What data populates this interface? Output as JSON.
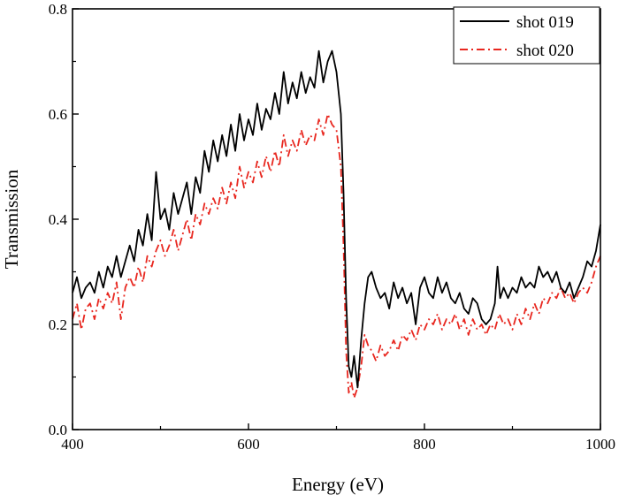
{
  "chart_data": {
    "type": "line",
    "title": "",
    "xlabel": "Energy (eV)",
    "ylabel": "Transmission",
    "xlim": [
      400,
      1000
    ],
    "ylim": [
      0.0,
      0.8
    ],
    "x_ticks": [
      400,
      600,
      800,
      1000
    ],
    "x_tick_labels": [
      "400",
      "600",
      "800",
      "1000"
    ],
    "y_ticks": [
      0.0,
      0.2,
      0.4,
      0.6,
      0.8
    ],
    "y_tick_labels": [
      "0.0",
      "0.2",
      "0.4",
      "0.6",
      "0.8"
    ],
    "grid": false,
    "legend_position": "top-right",
    "series": [
      {
        "name": "shot 019",
        "color": "#000000",
        "style": "solid",
        "points": [
          [
            400,
            0.26
          ],
          [
            405,
            0.29
          ],
          [
            410,
            0.25
          ],
          [
            415,
            0.27
          ],
          [
            420,
            0.28
          ],
          [
            425,
            0.26
          ],
          [
            430,
            0.3
          ],
          [
            435,
            0.27
          ],
          [
            440,
            0.31
          ],
          [
            445,
            0.29
          ],
          [
            450,
            0.33
          ],
          [
            455,
            0.29
          ],
          [
            460,
            0.32
          ],
          [
            465,
            0.35
          ],
          [
            470,
            0.32
          ],
          [
            475,
            0.38
          ],
          [
            480,
            0.35
          ],
          [
            485,
            0.41
          ],
          [
            490,
            0.36
          ],
          [
            495,
            0.49
          ],
          [
            500,
            0.4
          ],
          [
            505,
            0.42
          ],
          [
            510,
            0.38
          ],
          [
            515,
            0.45
          ],
          [
            520,
            0.41
          ],
          [
            525,
            0.44
          ],
          [
            530,
            0.47
          ],
          [
            535,
            0.41
          ],
          [
            540,
            0.48
          ],
          [
            545,
            0.45
          ],
          [
            550,
            0.53
          ],
          [
            555,
            0.49
          ],
          [
            560,
            0.55
          ],
          [
            565,
            0.51
          ],
          [
            570,
            0.56
          ],
          [
            575,
            0.52
          ],
          [
            580,
            0.58
          ],
          [
            585,
            0.53
          ],
          [
            590,
            0.6
          ],
          [
            595,
            0.55
          ],
          [
            600,
            0.59
          ],
          [
            605,
            0.56
          ],
          [
            610,
            0.62
          ],
          [
            615,
            0.57
          ],
          [
            620,
            0.61
          ],
          [
            625,
            0.59
          ],
          [
            630,
            0.64
          ],
          [
            635,
            0.6
          ],
          [
            640,
            0.68
          ],
          [
            645,
            0.62
          ],
          [
            650,
            0.66
          ],
          [
            655,
            0.63
          ],
          [
            660,
            0.68
          ],
          [
            665,
            0.64
          ],
          [
            670,
            0.67
          ],
          [
            675,
            0.65
          ],
          [
            680,
            0.72
          ],
          [
            685,
            0.66
          ],
          [
            690,
            0.7
          ],
          [
            695,
            0.72
          ],
          [
            700,
            0.68
          ],
          [
            705,
            0.6
          ],
          [
            708,
            0.45
          ],
          [
            711,
            0.25
          ],
          [
            714,
            0.12
          ],
          [
            717,
            0.1
          ],
          [
            720,
            0.14
          ],
          [
            724,
            0.08
          ],
          [
            728,
            0.17
          ],
          [
            732,
            0.24
          ],
          [
            736,
            0.29
          ],
          [
            740,
            0.3
          ],
          [
            745,
            0.27
          ],
          [
            750,
            0.25
          ],
          [
            755,
            0.26
          ],
          [
            760,
            0.23
          ],
          [
            765,
            0.28
          ],
          [
            770,
            0.25
          ],
          [
            775,
            0.27
          ],
          [
            780,
            0.24
          ],
          [
            785,
            0.26
          ],
          [
            790,
            0.2
          ],
          [
            795,
            0.27
          ],
          [
            800,
            0.29
          ],
          [
            805,
            0.26
          ],
          [
            810,
            0.25
          ],
          [
            815,
            0.29
          ],
          [
            820,
            0.26
          ],
          [
            825,
            0.28
          ],
          [
            830,
            0.25
          ],
          [
            835,
            0.24
          ],
          [
            840,
            0.26
          ],
          [
            845,
            0.23
          ],
          [
            850,
            0.22
          ],
          [
            855,
            0.25
          ],
          [
            860,
            0.24
          ],
          [
            865,
            0.21
          ],
          [
            870,
            0.2
          ],
          [
            875,
            0.21
          ],
          [
            880,
            0.24
          ],
          [
            883,
            0.31
          ],
          [
            886,
            0.25
          ],
          [
            890,
            0.27
          ],
          [
            895,
            0.25
          ],
          [
            900,
            0.27
          ],
          [
            905,
            0.26
          ],
          [
            910,
            0.29
          ],
          [
            915,
            0.27
          ],
          [
            920,
            0.28
          ],
          [
            925,
            0.27
          ],
          [
            930,
            0.31
          ],
          [
            935,
            0.29
          ],
          [
            940,
            0.3
          ],
          [
            945,
            0.28
          ],
          [
            950,
            0.3
          ],
          [
            955,
            0.27
          ],
          [
            960,
            0.26
          ],
          [
            965,
            0.28
          ],
          [
            970,
            0.25
          ],
          [
            975,
            0.27
          ],
          [
            980,
            0.29
          ],
          [
            985,
            0.32
          ],
          [
            990,
            0.31
          ],
          [
            995,
            0.34
          ],
          [
            1000,
            0.39
          ]
        ]
      },
      {
        "name": "shot 020",
        "color": "#e8271f",
        "style": "dash-dot",
        "points": [
          [
            400,
            0.21
          ],
          [
            405,
            0.24
          ],
          [
            410,
            0.19
          ],
          [
            415,
            0.23
          ],
          [
            420,
            0.24
          ],
          [
            425,
            0.21
          ],
          [
            430,
            0.25
          ],
          [
            435,
            0.23
          ],
          [
            440,
            0.26
          ],
          [
            445,
            0.24
          ],
          [
            450,
            0.28
          ],
          [
            455,
            0.21
          ],
          [
            460,
            0.27
          ],
          [
            465,
            0.29
          ],
          [
            470,
            0.27
          ],
          [
            475,
            0.31
          ],
          [
            480,
            0.28
          ],
          [
            485,
            0.33
          ],
          [
            490,
            0.31
          ],
          [
            495,
            0.34
          ],
          [
            500,
            0.36
          ],
          [
            505,
            0.33
          ],
          [
            510,
            0.35
          ],
          [
            515,
            0.38
          ],
          [
            520,
            0.34
          ],
          [
            525,
            0.37
          ],
          [
            530,
            0.4
          ],
          [
            535,
            0.36
          ],
          [
            540,
            0.41
          ],
          [
            545,
            0.39
          ],
          [
            550,
            0.43
          ],
          [
            555,
            0.41
          ],
          [
            560,
            0.44
          ],
          [
            565,
            0.42
          ],
          [
            570,
            0.46
          ],
          [
            575,
            0.43
          ],
          [
            580,
            0.47
          ],
          [
            585,
            0.44
          ],
          [
            590,
            0.5
          ],
          [
            595,
            0.46
          ],
          [
            600,
            0.49
          ],
          [
            605,
            0.47
          ],
          [
            610,
            0.51
          ],
          [
            615,
            0.48
          ],
          [
            620,
            0.52
          ],
          [
            625,
            0.49
          ],
          [
            630,
            0.53
          ],
          [
            635,
            0.5
          ],
          [
            640,
            0.56
          ],
          [
            645,
            0.52
          ],
          [
            650,
            0.55
          ],
          [
            655,
            0.53
          ],
          [
            660,
            0.57
          ],
          [
            665,
            0.54
          ],
          [
            670,
            0.56
          ],
          [
            675,
            0.55
          ],
          [
            680,
            0.59
          ],
          [
            685,
            0.56
          ],
          [
            690,
            0.6
          ],
          [
            695,
            0.58
          ],
          [
            700,
            0.57
          ],
          [
            705,
            0.5
          ],
          [
            708,
            0.35
          ],
          [
            711,
            0.15
          ],
          [
            714,
            0.07
          ],
          [
            717,
            0.09
          ],
          [
            720,
            0.06
          ],
          [
            724,
            0.08
          ],
          [
            728,
            0.12
          ],
          [
            732,
            0.18
          ],
          [
            736,
            0.16
          ],
          [
            740,
            0.15
          ],
          [
            745,
            0.13
          ],
          [
            750,
            0.16
          ],
          [
            755,
            0.14
          ],
          [
            760,
            0.15
          ],
          [
            765,
            0.17
          ],
          [
            770,
            0.15
          ],
          [
            775,
            0.18
          ],
          [
            780,
            0.17
          ],
          [
            785,
            0.19
          ],
          [
            790,
            0.17
          ],
          [
            795,
            0.2
          ],
          [
            800,
            0.19
          ],
          [
            805,
            0.21
          ],
          [
            810,
            0.2
          ],
          [
            815,
            0.22
          ],
          [
            820,
            0.19
          ],
          [
            825,
            0.21
          ],
          [
            830,
            0.2
          ],
          [
            835,
            0.22
          ],
          [
            840,
            0.19
          ],
          [
            845,
            0.21
          ],
          [
            850,
            0.18
          ],
          [
            855,
            0.21
          ],
          [
            860,
            0.19
          ],
          [
            865,
            0.2
          ],
          [
            870,
            0.18
          ],
          [
            875,
            0.2
          ],
          [
            880,
            0.19
          ],
          [
            885,
            0.22
          ],
          [
            890,
            0.2
          ],
          [
            895,
            0.21
          ],
          [
            900,
            0.19
          ],
          [
            905,
            0.22
          ],
          [
            910,
            0.2
          ],
          [
            915,
            0.23
          ],
          [
            920,
            0.21
          ],
          [
            925,
            0.24
          ],
          [
            930,
            0.22
          ],
          [
            935,
            0.25
          ],
          [
            940,
            0.24
          ],
          [
            945,
            0.26
          ],
          [
            950,
            0.25
          ],
          [
            955,
            0.27
          ],
          [
            960,
            0.25
          ],
          [
            965,
            0.26
          ],
          [
            970,
            0.24
          ],
          [
            975,
            0.26
          ],
          [
            980,
            0.27
          ],
          [
            985,
            0.26
          ],
          [
            990,
            0.28
          ],
          [
            995,
            0.31
          ],
          [
            1000,
            0.33
          ]
        ]
      }
    ]
  }
}
